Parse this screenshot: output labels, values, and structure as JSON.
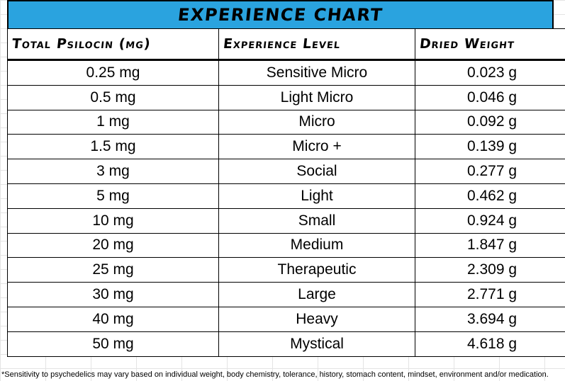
{
  "title": "EXPERIENCE CHART",
  "columns": [
    "Total Psilocin (mg)",
    "Experience Level",
    "Dried Weight"
  ],
  "rows": [
    [
      "0.25 mg",
      "Sensitive Micro",
      "0.023 g"
    ],
    [
      "0.5 mg",
      "Light Micro",
      "0.046 g"
    ],
    [
      "1 mg",
      "Micro",
      "0.092 g"
    ],
    [
      "1.5 mg",
      "Micro +",
      "0.139 g"
    ],
    [
      "3 mg",
      "Social",
      "0.277 g"
    ],
    [
      "5 mg",
      "Light",
      "0.462 g"
    ],
    [
      "10 mg",
      "Small",
      "0.924 g"
    ],
    [
      "20 mg",
      "Medium",
      "1.847 g"
    ],
    [
      "25 mg",
      "Therapeutic",
      "2.309 g"
    ],
    [
      "30 mg",
      "Large",
      "2.771 g"
    ],
    [
      "40 mg",
      "Heavy",
      "3.694 g"
    ],
    [
      "50 mg",
      "Mystical",
      "4.618 g"
    ]
  ],
  "footnote": "*Sensitivity to psychedelics may vary based on individual weight, body chemistry, tolerance, history, stomach content, mindset, environment and/or medication.",
  "colors": {
    "title_bg": "#2aa3df",
    "border": "#000000",
    "gridline": "#e4e4e4"
  }
}
